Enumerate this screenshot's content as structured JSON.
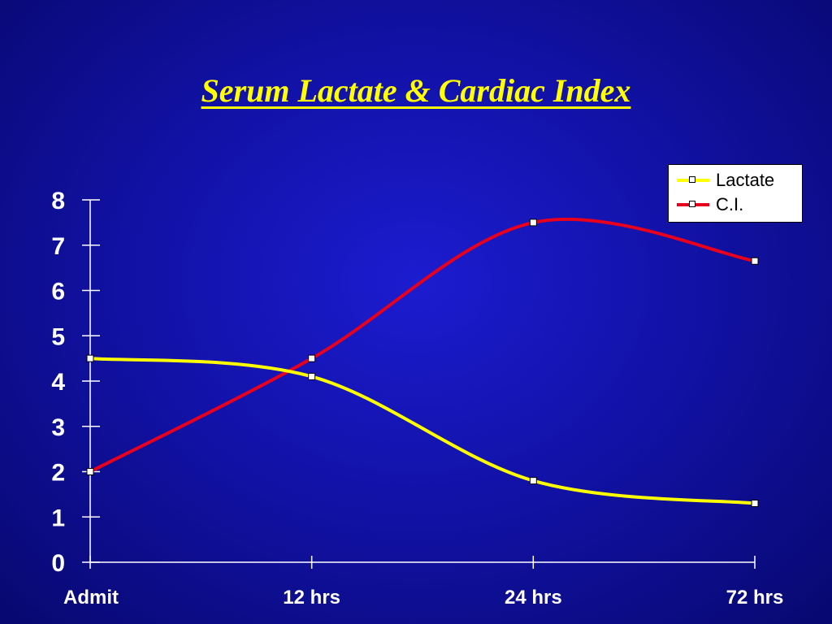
{
  "slide": {
    "title": "Serum Lactate & Cardiac Index"
  },
  "chart_data": {
    "type": "line",
    "title": "",
    "xlabel": "",
    "ylabel": "",
    "categories": [
      "Admit",
      "12 hrs",
      "24 hrs",
      "72 hrs"
    ],
    "ylim": [
      0,
      8
    ],
    "yticks": [
      "0",
      "1",
      "2",
      "3",
      "4",
      "5",
      "6",
      "7",
      "8"
    ],
    "grid": false,
    "legend_position": "top-right",
    "smooth": true,
    "series": [
      {
        "name": "Lactate",
        "values": [
          4.5,
          4.1,
          1.8,
          1.3
        ],
        "color": "#ffff00"
      },
      {
        "name": "C.I.",
        "values": [
          2.0,
          4.5,
          7.5,
          6.65
        ],
        "color": "#e8001c"
      }
    ]
  }
}
